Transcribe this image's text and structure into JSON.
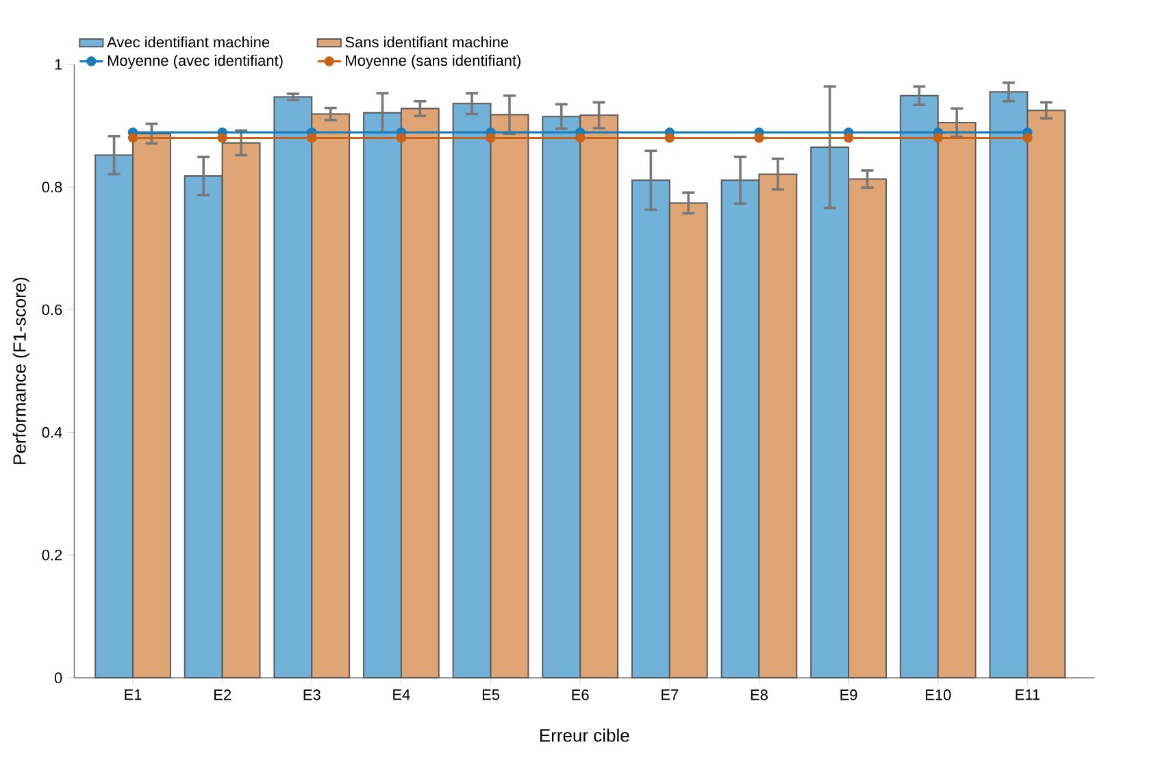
{
  "chart_data": {
    "type": "bar",
    "xlabel": "Erreur cible",
    "ylabel": "Performance (F1-score)",
    "categories": [
      "E1",
      "E2",
      "E3",
      "E4",
      "E5",
      "E6",
      "E7",
      "E8",
      "E9",
      "E10",
      "E11"
    ],
    "series": [
      {
        "name": "Avec identifiant machine",
        "color": "#6aaed6",
        "values": [
          0.852,
          0.818,
          0.947,
          0.921,
          0.936,
          0.915,
          0.811,
          0.811,
          0.865,
          0.949,
          0.955
        ],
        "errors": [
          0.031,
          0.031,
          0.005,
          0.032,
          0.017,
          0.02,
          0.048,
          0.038,
          0.099,
          0.015,
          0.015
        ]
      },
      {
        "name": "Sans identifiant machine",
        "color": "#dda06e",
        "values": [
          0.887,
          0.872,
          0.919,
          0.928,
          0.918,
          0.917,
          0.774,
          0.821,
          0.813,
          0.905,
          0.925
        ],
        "errors": [
          0.016,
          0.02,
          0.01,
          0.012,
          0.031,
          0.021,
          0.017,
          0.025,
          0.014,
          0.023,
          0.013
        ]
      },
      {
        "name": "Moyenne (avec identifiant)",
        "type": "line",
        "color": "#1a7dbb",
        "marker": "circle",
        "values": [
          0.889,
          0.889,
          0.889,
          0.889,
          0.889,
          0.889,
          0.889,
          0.889,
          0.889,
          0.889,
          0.889
        ]
      },
      {
        "name": "Moyenne (sans identifiant)",
        "type": "line",
        "color": "#c8621a",
        "marker": "circle",
        "values": [
          0.88,
          0.88,
          0.88,
          0.88,
          0.88,
          0.88,
          0.88,
          0.88,
          0.88,
          0.88,
          0.88
        ]
      }
    ],
    "ylim": [
      0,
      1
    ],
    "yticks": [
      0,
      0.2,
      0.4,
      0.6,
      0.8,
      1
    ],
    "grid": false,
    "legend": "top left"
  }
}
